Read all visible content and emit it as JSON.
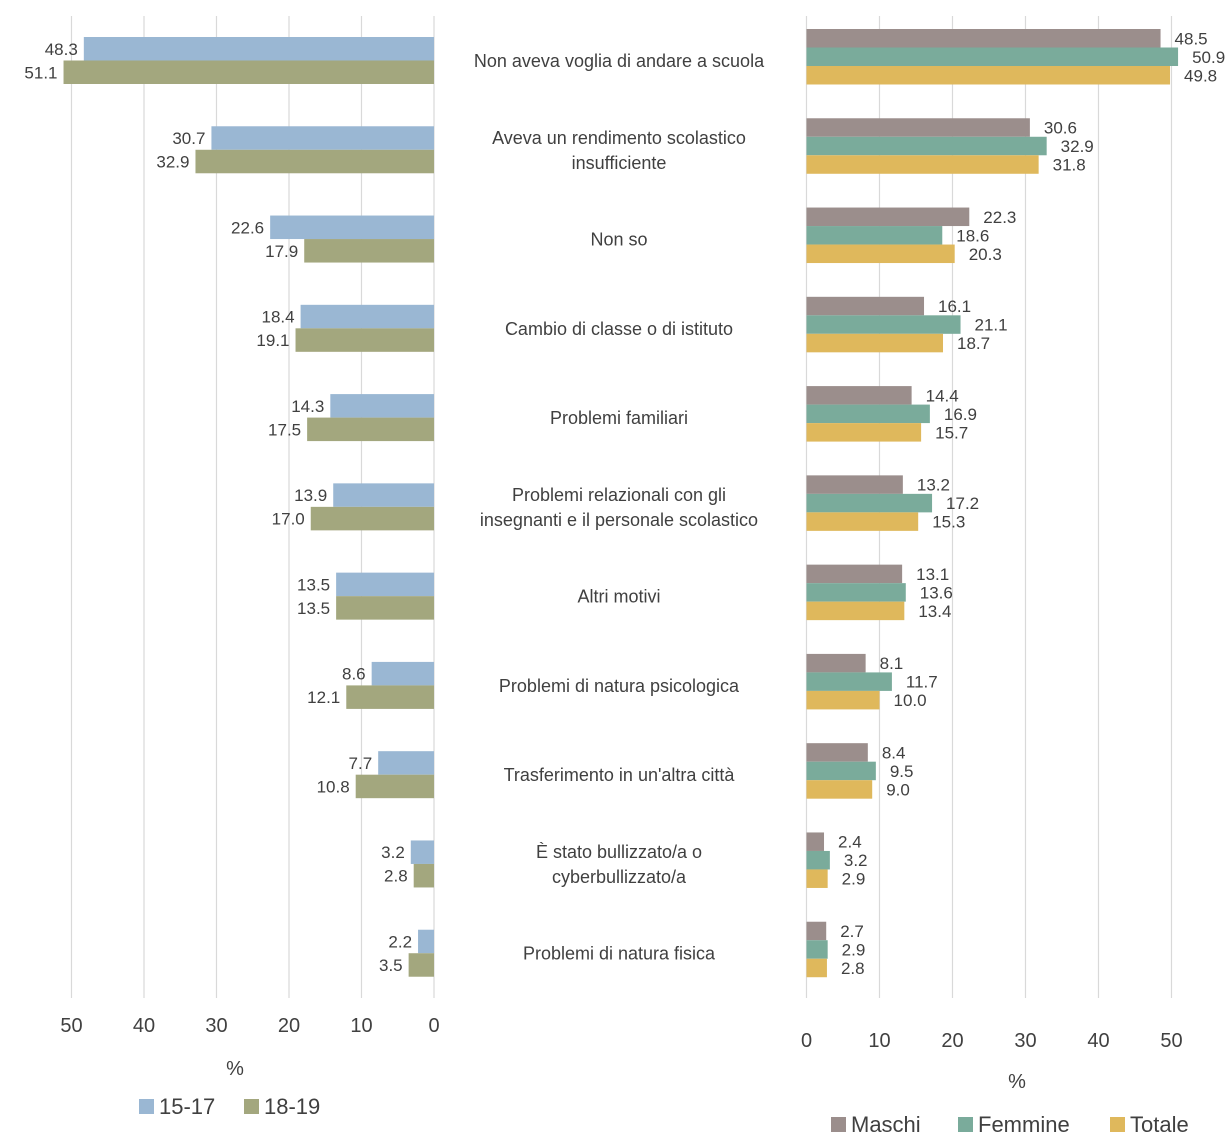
{
  "chart_data": [
    {
      "type": "bar",
      "orientation": "horizontal",
      "reversed_x": true,
      "categories": [
        "Non aveva voglia di andare a scuola",
        "Aveva un rendimento scolastico insufficiente",
        "Non so",
        "Cambio di classe o di istituto",
        "Problemi familiari",
        "Problemi relazionali con gli insegnanti e il personale scolastico",
        "Altri motivi",
        "Problemi di natura psicologica",
        "Trasferimento in un'altra città",
        "È stato bullizzato/a o cyberbullizzato/a",
        "Problemi di natura fisica"
      ],
      "series": [
        {
          "name": "15-17",
          "color": "#9ab7d3",
          "values": [
            48.3,
            30.7,
            22.6,
            18.4,
            14.3,
            13.9,
            13.5,
            8.6,
            7.7,
            3.2,
            2.2
          ]
        },
        {
          "name": "18-19",
          "color": "#a3a77e",
          "values": [
            51.1,
            32.9,
            17.9,
            19.1,
            17.5,
            17.0,
            13.5,
            12.1,
            10.8,
            2.8,
            3.5
          ]
        }
      ],
      "xlim": [
        0,
        50
      ],
      "ticks": [
        50,
        40,
        30,
        20,
        10,
        0
      ],
      "xlabel": "%",
      "grid": true,
      "legend": "bottom"
    },
    {
      "type": "bar",
      "orientation": "horizontal",
      "categories": [
        "Non aveva voglia di andare a scuola",
        "Aveva un rendimento scolastico insufficiente",
        "Non so",
        "Cambio di classe o di istituto",
        "Problemi familiari",
        "Problemi relazionali con gli insegnanti e il personale scolastico",
        "Altri motivi",
        "Problemi di natura psicologica",
        "Trasferimento in un'altra città",
        "È stato bullizzato/a o cyberbullizzato/a",
        "Problemi di natura fisica"
      ],
      "series": [
        {
          "name": "Maschi",
          "color": "#9b8e8c",
          "values": [
            48.5,
            30.6,
            22.3,
            16.1,
            14.4,
            13.2,
            13.1,
            8.1,
            8.4,
            2.4,
            2.7
          ]
        },
        {
          "name": "Femmine",
          "color": "#7aab9b",
          "values": [
            50.9,
            32.9,
            18.6,
            21.1,
            16.9,
            17.2,
            13.6,
            11.7,
            9.5,
            3.2,
            2.9
          ]
        },
        {
          "name": "Totale",
          "color": "#dfb85c",
          "values": [
            49.8,
            31.8,
            20.3,
            18.7,
            15.7,
            15.3,
            13.4,
            10.0,
            9.0,
            2.9,
            2.8
          ]
        }
      ],
      "xlim": [
        0,
        50
      ],
      "ticks": [
        0,
        10,
        20,
        30,
        40,
        50
      ],
      "xlabel": "%",
      "grid": true,
      "legend": "bottom"
    }
  ],
  "category_lines": [
    [
      "Non aveva voglia di andare a scuola"
    ],
    [
      "Aveva un rendimento scolastico",
      "insufficiente"
    ],
    [
      "Non so"
    ],
    [
      "Cambio di classe o di istituto"
    ],
    [
      "Problemi familiari"
    ],
    [
      "Problemi relazionali con gli",
      "insegnanti e il personale scolastico"
    ],
    [
      "Altri motivi"
    ],
    [
      "Problemi di natura psicologica"
    ],
    [
      "Trasferimento in un'altra città"
    ],
    [
      "È stato bullizzato/a o",
      "cyberbullizzato/a"
    ],
    [
      "Problemi di natura fisica"
    ]
  ],
  "colors": {
    "grid": "#d9d9d9",
    "text": "#404040"
  }
}
